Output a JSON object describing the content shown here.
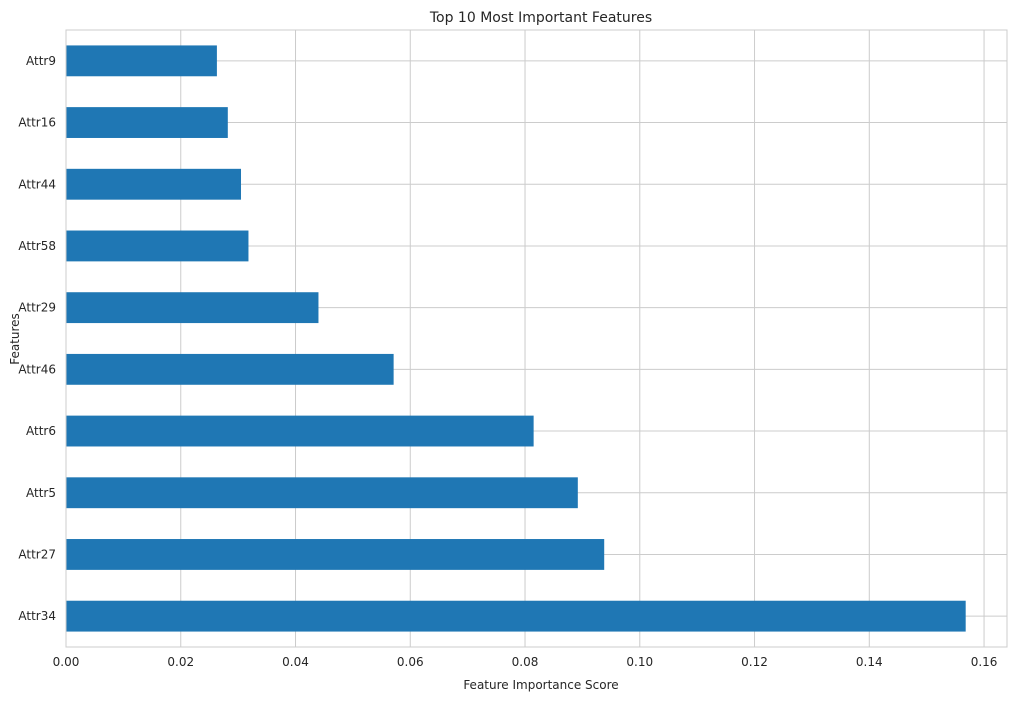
{
  "chart_data": {
    "type": "bar",
    "orientation": "horizontal",
    "title": "Top 10 Most Important Features",
    "xlabel": "Feature Importance Score",
    "ylabel": "Features",
    "categories": [
      "Attr34",
      "Attr27",
      "Attr5",
      "Attr6",
      "Attr46",
      "Attr29",
      "Attr58",
      "Attr44",
      "Attr16",
      "Attr9"
    ],
    "values": [
      0.1568,
      0.0938,
      0.0892,
      0.0815,
      0.0571,
      0.044,
      0.0318,
      0.0305,
      0.0282,
      0.0263
    ],
    "xlim": [
      0,
      0.164
    ],
    "xticks": [
      0.0,
      0.02,
      0.04,
      0.06,
      0.08,
      0.1,
      0.12,
      0.14,
      0.16
    ],
    "xtick_labels": [
      "0.00",
      "0.02",
      "0.04",
      "0.06",
      "0.08",
      "0.10",
      "0.12",
      "0.14",
      "0.16"
    ],
    "grid": true,
    "legend": "none",
    "colors": {
      "bar": "#1f77b4",
      "grid": "#cccccc",
      "spine": "#cccccc",
      "text": "#262626",
      "background": "#ffffff"
    }
  }
}
